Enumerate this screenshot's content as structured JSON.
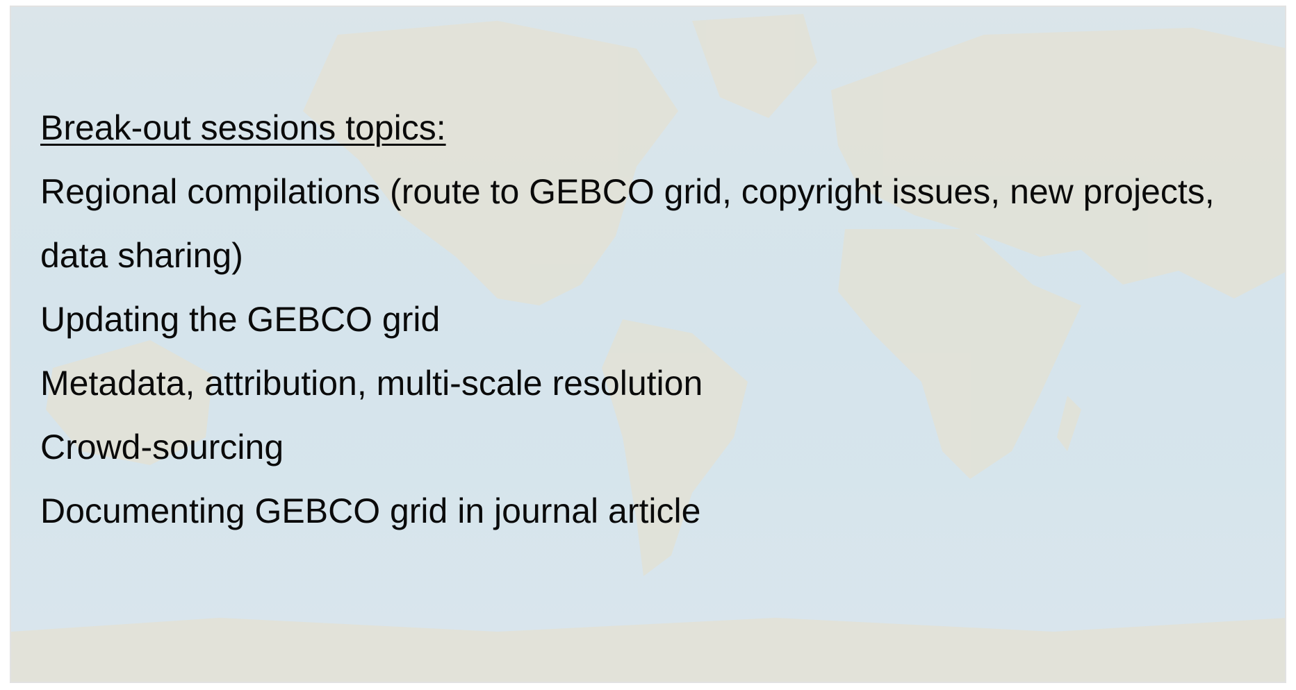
{
  "slide": {
    "heading": "Break-out sessions topics:",
    "items": [
      "Regional compilations (route to GEBCO grid, copyright issues, new projects, data sharing)",
      "Updating the GEBCO grid",
      "Metadata, attribution, multi-scale resolution",
      "Crowd-sourcing",
      "Documenting GEBCO grid in journal article"
    ]
  }
}
